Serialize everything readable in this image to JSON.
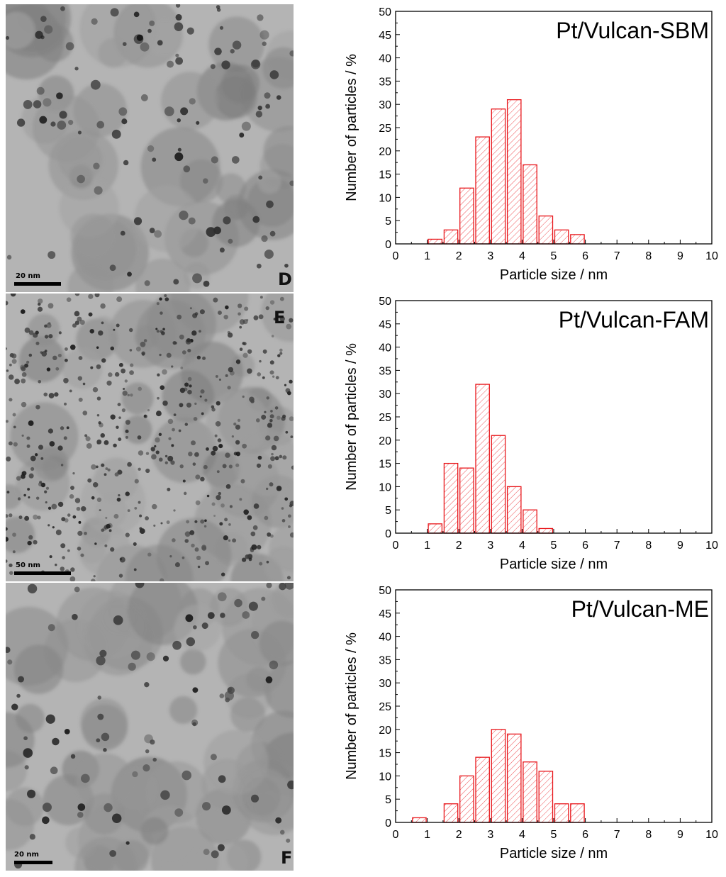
{
  "micrographs": [
    {
      "letter": "D",
      "scale_label": "20 nm",
      "scale_nm": 20,
      "density": 110,
      "tone": "mid"
    },
    {
      "letter": "E",
      "scale_label": "50 nm",
      "scale_nm": 50,
      "density": 520,
      "tone": "fine"
    },
    {
      "letter": "F",
      "scale_label": "20 nm",
      "scale_nm": 20,
      "density": 90,
      "tone": "light"
    }
  ],
  "chart_data": [
    {
      "type": "bar",
      "title": "Pt/Vulcan-SBM",
      "xlabel": "Particle size / nm",
      "ylabel": "Number of particles / %",
      "xlim": [
        0,
        10
      ],
      "ylim": [
        0,
        50
      ],
      "x_ticks": [
        0,
        1,
        2,
        3,
        4,
        5,
        6,
        7,
        8,
        9,
        10
      ],
      "y_ticks": [
        0,
        5,
        10,
        15,
        20,
        25,
        30,
        35,
        40,
        45,
        50
      ],
      "bin_width": 0.5,
      "x": [
        1.25,
        1.75,
        2.25,
        2.75,
        3.25,
        3.75,
        4.25,
        4.75,
        5.25,
        5.75
      ],
      "values": [
        1,
        3,
        12,
        23,
        29,
        31,
        17,
        6,
        3,
        2
      ],
      "bar_color": "#e8161b"
    },
    {
      "type": "bar",
      "title": "Pt/Vulcan-FAM",
      "xlabel": "Particle size / nm",
      "ylabel": "Number of particles / %",
      "xlim": [
        0,
        10
      ],
      "ylim": [
        0,
        50
      ],
      "x_ticks": [
        0,
        1,
        2,
        3,
        4,
        5,
        6,
        7,
        8,
        9,
        10
      ],
      "y_ticks": [
        0,
        5,
        10,
        15,
        20,
        25,
        30,
        35,
        40,
        45,
        50
      ],
      "bin_width": 0.5,
      "x": [
        1.25,
        1.75,
        2.25,
        2.75,
        3.25,
        3.75,
        4.25,
        4.75
      ],
      "values": [
        2,
        15,
        14,
        32,
        21,
        10,
        5,
        1
      ],
      "bar_color": "#e8161b"
    },
    {
      "type": "bar",
      "title": "Pt/Vulcan-ME",
      "xlabel": "Particle size / nm",
      "ylabel": "Number of particles / %",
      "xlim": [
        0,
        10
      ],
      "ylim": [
        0,
        50
      ],
      "x_ticks": [
        0,
        1,
        2,
        3,
        4,
        5,
        6,
        7,
        8,
        9,
        10
      ],
      "y_ticks": [
        0,
        5,
        10,
        15,
        20,
        25,
        30,
        35,
        40,
        45,
        50
      ],
      "bin_width": 0.5,
      "x": [
        0.75,
        1.75,
        2.25,
        2.75,
        3.25,
        3.75,
        4.25,
        4.75,
        5.25,
        5.75
      ],
      "values": [
        1,
        4,
        10,
        14,
        20,
        19,
        13,
        11,
        4,
        4
      ],
      "bar_color": "#e8161b"
    }
  ]
}
